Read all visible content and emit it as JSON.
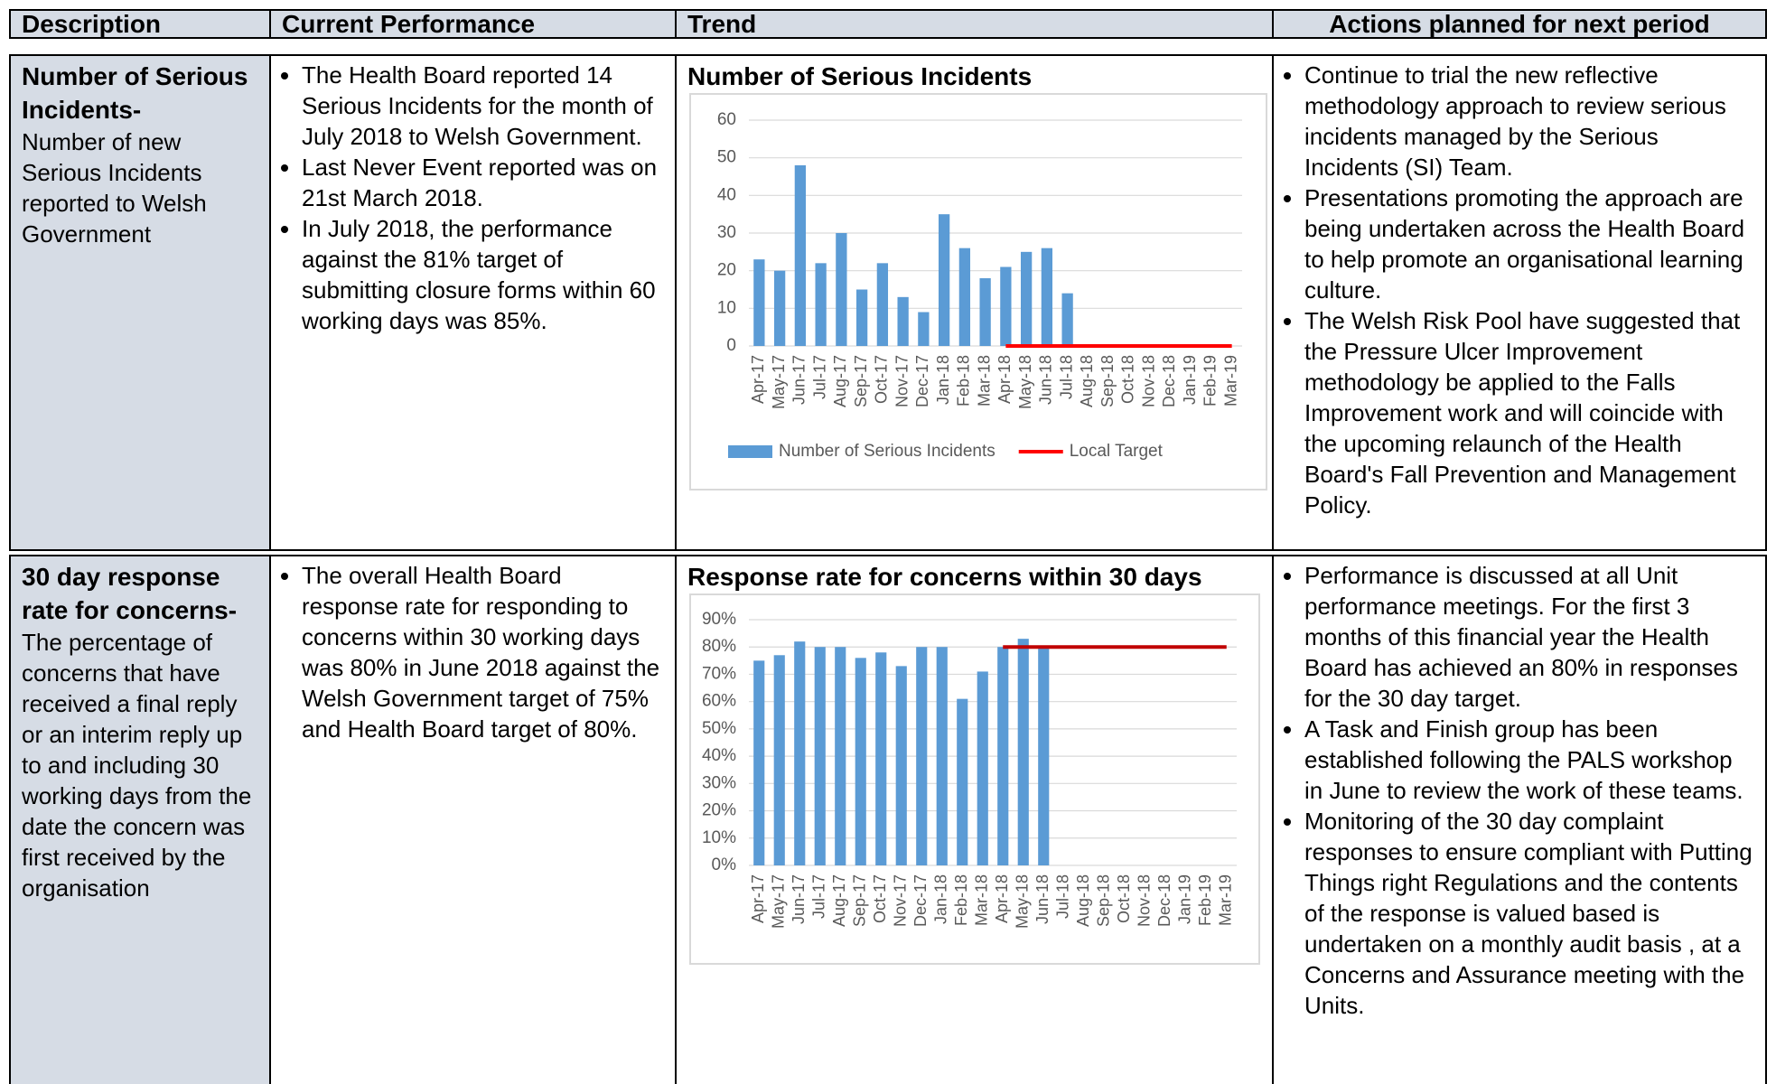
{
  "header": [
    "Description",
    "Current Performance",
    "Trend",
    "Actions planned for next period"
  ],
  "rows": [
    {
      "description_title": "Number of Serious Incidents-",
      "description_text": "Number of new Serious Incidents reported to Welsh Government",
      "performance": [
        "The Health Board reported 14 Serious Incidents for the month of July 2018 to Welsh Government.",
        "Last Never Event reported was on 21st March 2018.",
        "In July 2018, the performance against the 81% target of submitting closure forms within 60 working days was 85%."
      ],
      "chart": {
        "type": "bar",
        "title": "Number of Serious Incidents",
        "categories": [
          "Apr-17",
          "May-17",
          "Jun-17",
          "Jul-17",
          "Aug-17",
          "Sep-17",
          "Oct-17",
          "Nov-17",
          "Dec-17",
          "Jan-18",
          "Feb-18",
          "Mar-18",
          "Apr-18",
          "May-18",
          "Jun-18",
          "Jul-18",
          "Aug-18",
          "Sep-18",
          "Oct-18",
          "Nov-18",
          "Dec-18",
          "Jan-19",
          "Feb-19",
          "Mar-19"
        ],
        "series": [
          {
            "name": "Number of Serious Incidents",
            "type": "bar",
            "color": "#5b9bd5",
            "values": [
              23,
              20,
              48,
              22,
              30,
              15,
              22,
              13,
              9,
              35,
              26,
              18,
              21,
              25,
              26,
              14,
              null,
              null,
              null,
              null,
              null,
              null,
              null,
              null
            ]
          },
          {
            "name": "Local Target",
            "type": "line",
            "color": "#ff0000",
            "values": [
              null,
              null,
              null,
              null,
              null,
              null,
              null,
              null,
              null,
              null,
              null,
              null,
              0,
              0,
              0,
              0,
              0,
              0,
              0,
              0,
              0,
              0,
              0,
              0
            ]
          }
        ],
        "ylim": [
          0,
          60
        ],
        "yticks": [
          0,
          10,
          20,
          30,
          40,
          50,
          60
        ],
        "grid": true,
        "legend": "bottom"
      },
      "actions": [
        "Continue to trial the new reflective methodology approach to review serious incidents managed by the Serious Incidents (SI) Team.",
        "Presentations promoting the approach are being undertaken across the Health Board to help promote an organisational learning culture.",
        "The Welsh Risk Pool have suggested that the Pressure Ulcer Improvement methodology be applied to the Falls Improvement work and will coincide with the upcoming relaunch of the Health Board's Fall Prevention and Management Policy."
      ]
    },
    {
      "description_title": "30 day response rate for concerns-",
      "description_text": "The percentage of concerns that have received a final reply or an interim reply up to and including 30 working days from the date the concern was first received by the organisation",
      "performance": [
        "The overall Health Board response rate for responding to concerns within 30 working days was 80% in June 2018 against the Welsh Government target of 75% and Health Board target of 80%."
      ],
      "chart": {
        "type": "bar",
        "title": "Response rate for concerns within 30 days",
        "categories": [
          "Apr-17",
          "May-17",
          "Jun-17",
          "Jul-17",
          "Aug-17",
          "Sep-17",
          "Oct-17",
          "Nov-17",
          "Dec-17",
          "Jan-18",
          "Feb-18",
          "Mar-18",
          "Apr-18",
          "May-18",
          "Jun-18",
          "Jul-18",
          "Aug-18",
          "Sep-18",
          "Oct-18",
          "Nov-18",
          "Dec-18",
          "Jan-19",
          "Feb-19",
          "Mar-19"
        ],
        "series": [
          {
            "type": "bar",
            "color": "#5b9bd5",
            "values": [
              75,
              77,
              82,
              80,
              80,
              76,
              78,
              73,
              80,
              80,
              61,
              71,
              80,
              83,
              80,
              null,
              null,
              null,
              null,
              null,
              null,
              null,
              null,
              null
            ]
          },
          {
            "type": "line",
            "color": "#c00000",
            "values": [
              null,
              null,
              null,
              null,
              null,
              null,
              null,
              null,
              null,
              null,
              null,
              null,
              80,
              80,
              80,
              80,
              80,
              80,
              80,
              80,
              80,
              80,
              80,
              80
            ]
          }
        ],
        "ylim": [
          0,
          90
        ],
        "yticks": [
          {
            "value": 0,
            "label": "0%"
          },
          {
            "value": 10,
            "label": "10%"
          },
          {
            "value": 20,
            "label": "20%"
          },
          {
            "value": 30,
            "label": "30%"
          },
          {
            "value": 40,
            "label": "40%"
          },
          {
            "value": 50,
            "label": "50%"
          },
          {
            "value": 60,
            "label": "60%"
          },
          {
            "value": 70,
            "label": "70%"
          },
          {
            "value": 80,
            "label": "80%"
          },
          {
            "value": 90,
            "label": "90%"
          }
        ],
        "grid": true
      },
      "actions": [
        "Performance is discussed at all Unit performance meetings. For the first 3 months of this financial year the Health Board has achieved an 80% in responses for the 30 day target.",
        "A Task and Finish group has been established following the PALS workshop in June to review the work of these teams.",
        "Monitoring of the 30 day complaint responses to ensure compliant with Putting Things right Regulations and the contents of the response is valued based is undertaken on a monthly audit basis , at a Concerns and Assurance meeting with the Units."
      ]
    }
  ]
}
